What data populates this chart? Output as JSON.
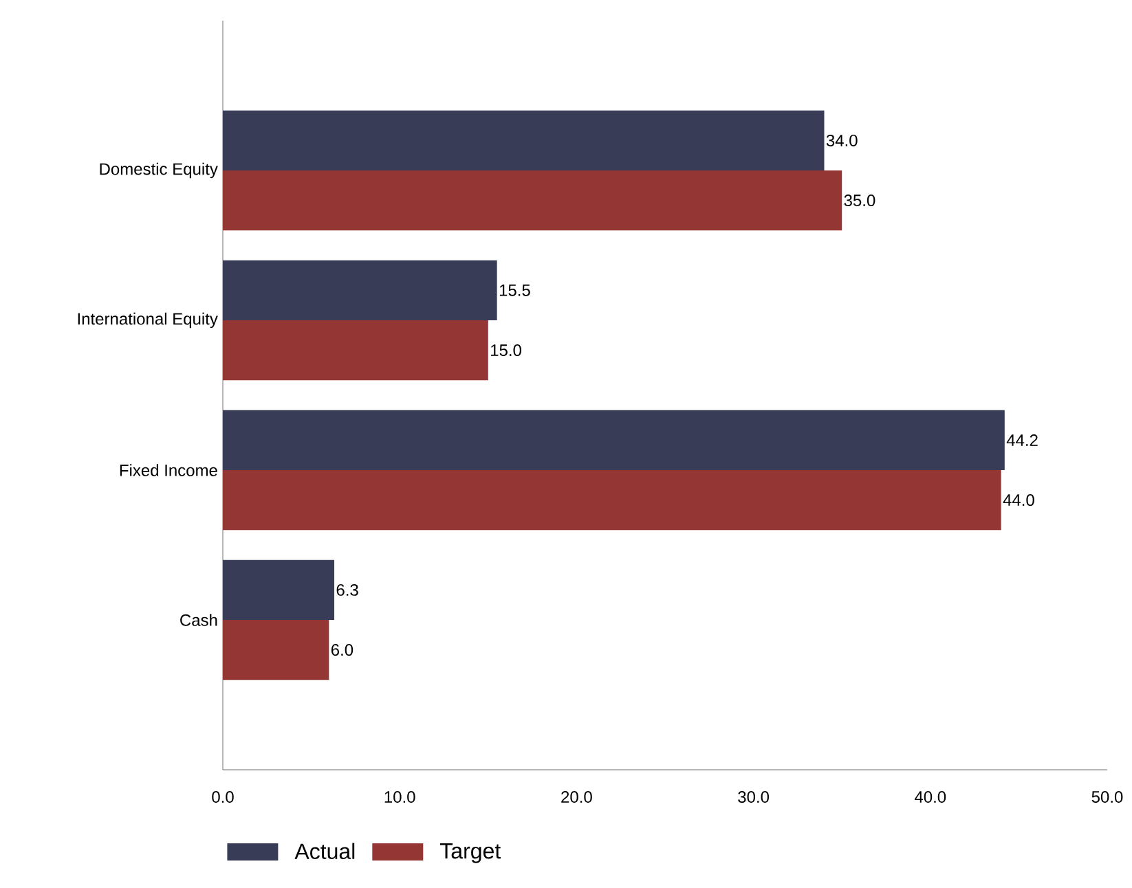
{
  "chart_data": {
    "type": "bar",
    "orientation": "horizontal",
    "categories": [
      "Domestic Equity",
      "International Equity",
      "Fixed Income",
      "Cash"
    ],
    "series": [
      {
        "name": "Actual",
        "color": "#383c56",
        "values": [
          34.0,
          15.5,
          44.2,
          6.3
        ],
        "value_labels": [
          "34.0",
          "15.5",
          "44.2",
          "6.3"
        ]
      },
      {
        "name": "Target",
        "color": "#943634",
        "values": [
          35.0,
          15.0,
          44.0,
          6.0
        ],
        "value_labels": [
          "35.0",
          "15.0",
          "44.0",
          "6.0"
        ]
      }
    ],
    "xlim": [
      0,
      50
    ],
    "xticks": [
      {
        "value": 0,
        "label": "0.0"
      },
      {
        "value": 10,
        "label": "10.0"
      },
      {
        "value": 20,
        "label": "20.0"
      },
      {
        "value": 30,
        "label": "30.0"
      },
      {
        "value": 40,
        "label": "40.0"
      },
      {
        "value": 50,
        "label": "50.0"
      }
    ],
    "legend": "bottom"
  }
}
